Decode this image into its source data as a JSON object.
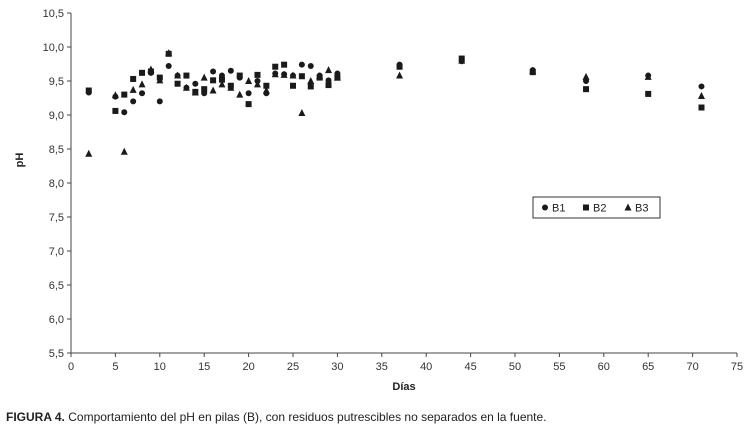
{
  "chart_data": {
    "type": "scatter",
    "xlabel": "Días",
    "ylabel": "pH",
    "xlim": [
      0,
      75
    ],
    "ylim": [
      5.5,
      10.5
    ],
    "x_ticks": [
      0,
      5,
      10,
      15,
      20,
      25,
      30,
      35,
      40,
      45,
      50,
      55,
      60,
      65,
      70,
      75
    ],
    "y_ticks": [
      "5,5",
      "6,0",
      "6,5",
      "7,0",
      "7,5",
      "8,0",
      "8,5",
      "9,0",
      "9,5",
      "10,0",
      "10,5"
    ],
    "y_tick_values": [
      5.5,
      6.0,
      6.5,
      7.0,
      7.5,
      8.0,
      8.5,
      9.0,
      9.5,
      10.0,
      10.5
    ],
    "grid": false,
    "legend_position": "right",
    "series": [
      {
        "name": "B1",
        "marker": "circle",
        "color": "#1a1a1a",
        "points": [
          [
            2,
            9.33
          ],
          [
            5,
            9.27
          ],
          [
            6,
            9.04
          ],
          [
            7,
            9.2
          ],
          [
            8,
            9.32
          ],
          [
            9,
            9.62
          ],
          [
            10,
            9.2
          ],
          [
            11,
            9.72
          ],
          [
            12,
            9.58
          ],
          [
            13,
            9.4
          ],
          [
            14,
            9.46
          ],
          [
            15,
            9.32
          ],
          [
            16,
            9.64
          ],
          [
            17,
            9.58
          ],
          [
            18,
            9.65
          ],
          [
            19,
            9.55
          ],
          [
            20,
            9.32
          ],
          [
            21,
            9.5
          ],
          [
            22,
            9.32
          ],
          [
            23,
            9.61
          ],
          [
            24,
            9.6
          ],
          [
            25,
            9.58
          ],
          [
            26,
            9.74
          ],
          [
            27,
            9.72
          ],
          [
            28,
            9.58
          ],
          [
            29,
            9.51
          ],
          [
            30,
            9.61
          ],
          [
            37,
            9.74
          ],
          [
            44,
            9.79
          ],
          [
            52,
            9.66
          ],
          [
            58,
            9.5
          ],
          [
            65,
            9.58
          ],
          [
            71,
            9.42
          ]
        ]
      },
      {
        "name": "B2",
        "marker": "square",
        "color": "#1a1a1a",
        "points": [
          [
            2,
            9.36
          ],
          [
            5,
            9.06
          ],
          [
            6,
            9.3
          ],
          [
            7,
            9.53
          ],
          [
            8,
            9.62
          ],
          [
            9,
            9.64
          ],
          [
            10,
            9.55
          ],
          [
            11,
            9.9
          ],
          [
            12,
            9.46
          ],
          [
            13,
            9.58
          ],
          [
            14,
            9.34
          ],
          [
            15,
            9.38
          ],
          [
            16,
            9.51
          ],
          [
            17,
            9.52
          ],
          [
            18,
            9.43
          ],
          [
            19,
            9.58
          ],
          [
            20,
            9.16
          ],
          [
            21,
            9.59
          ],
          [
            22,
            9.43
          ],
          [
            23,
            9.71
          ],
          [
            24,
            9.74
          ],
          [
            25,
            9.43
          ],
          [
            26,
            9.57
          ],
          [
            27,
            9.42
          ],
          [
            28,
            9.55
          ],
          [
            29,
            9.44
          ],
          [
            30,
            9.55
          ],
          [
            37,
            9.71
          ],
          [
            44,
            9.83
          ],
          [
            52,
            9.63
          ],
          [
            58,
            9.38
          ],
          [
            65,
            9.31
          ],
          [
            71,
            9.11
          ]
        ]
      },
      {
        "name": "B3",
        "marker": "triangle",
        "color": "#1a1a1a",
        "points": [
          [
            2,
            8.43
          ],
          [
            5,
            9.29
          ],
          [
            6,
            8.46
          ],
          [
            7,
            9.37
          ],
          [
            8,
            9.45
          ],
          [
            9,
            9.67
          ],
          [
            10,
            9.51
          ],
          [
            11,
            9.91
          ],
          [
            12,
            9.58
          ],
          [
            13,
            9.4
          ],
          [
            14,
            9.33
          ],
          [
            15,
            9.55
          ],
          [
            16,
            9.36
          ],
          [
            17,
            9.45
          ],
          [
            18,
            9.4
          ],
          [
            19,
            9.3
          ],
          [
            20,
            9.5
          ],
          [
            21,
            9.45
          ],
          [
            22,
            9.36
          ],
          [
            23,
            9.6
          ],
          [
            24,
            9.59
          ],
          [
            25,
            9.58
          ],
          [
            26,
            9.03
          ],
          [
            27,
            9.5
          ],
          [
            28,
            9.57
          ],
          [
            29,
            9.66
          ],
          [
            30,
            9.55
          ],
          [
            37,
            9.58
          ],
          [
            44,
            9.8
          ],
          [
            52,
            9.65
          ],
          [
            58,
            9.56
          ],
          [
            65,
            9.56
          ],
          [
            71,
            9.28
          ]
        ]
      }
    ]
  },
  "caption": {
    "label": "FIGURA 4.",
    "text": " Comportamiento del pH en pilas (B), con residuos putrescibles no separados en la fuente."
  }
}
